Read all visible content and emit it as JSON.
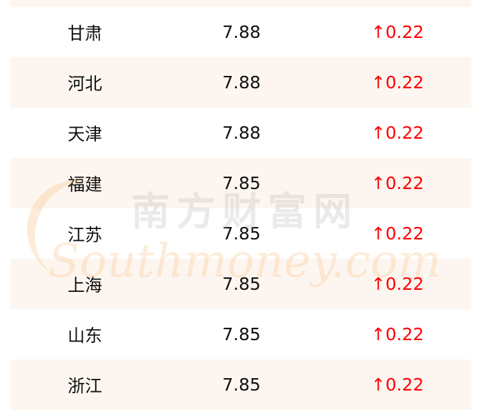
{
  "watermark": {
    "cn": "南方财富网",
    "en": "Southmoney.com"
  },
  "colors": {
    "up": "#ff0000",
    "row_shade": "#fdf6f0"
  },
  "rows": [
    {
      "region": "",
      "price": "",
      "change": ""
    },
    {
      "region": "甘肃",
      "price": "7.88",
      "change": "↑0.22"
    },
    {
      "region": "河北",
      "price": "7.88",
      "change": "↑0.22"
    },
    {
      "region": "天津",
      "price": "7.88",
      "change": "↑0.22"
    },
    {
      "region": "福建",
      "price": "7.85",
      "change": "↑0.22"
    },
    {
      "region": "江苏",
      "price": "7.85",
      "change": "↑0.22"
    },
    {
      "region": "上海",
      "price": "7.85",
      "change": "↑0.22"
    },
    {
      "region": "山东",
      "price": "7.85",
      "change": "↑0.22"
    },
    {
      "region": "浙江",
      "price": "7.85",
      "change": "↑0.22"
    }
  ]
}
